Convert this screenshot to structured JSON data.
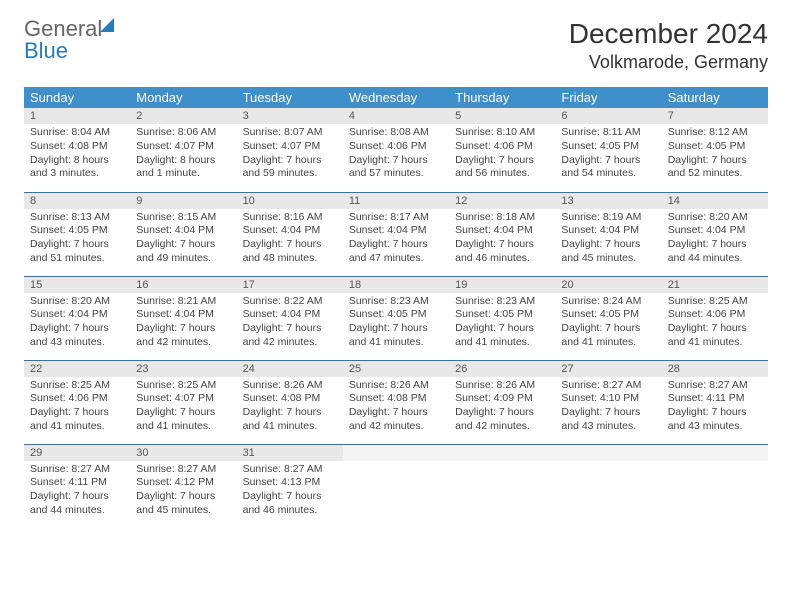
{
  "brand": {
    "word1": "General",
    "word2": "Blue"
  },
  "title": "December 2024",
  "location": "Volkmarode, Germany",
  "colors": {
    "header_bg": "#3f8fca",
    "header_text": "#ffffff",
    "daynum_bg": "#e8e8e8",
    "row_border": "#3f6f9f",
    "brand_blue": "#2a7ab9",
    "body_text": "#444444"
  },
  "dayHeaders": [
    "Sunday",
    "Monday",
    "Tuesday",
    "Wednesday",
    "Thursday",
    "Friday",
    "Saturday"
  ],
  "weeks": [
    [
      {
        "n": "1",
        "sr": "Sunrise: 8:04 AM",
        "ss": "Sunset: 4:08 PM",
        "dl": "Daylight: 8 hours and 3 minutes."
      },
      {
        "n": "2",
        "sr": "Sunrise: 8:06 AM",
        "ss": "Sunset: 4:07 PM",
        "dl": "Daylight: 8 hours and 1 minute."
      },
      {
        "n": "3",
        "sr": "Sunrise: 8:07 AM",
        "ss": "Sunset: 4:07 PM",
        "dl": "Daylight: 7 hours and 59 minutes."
      },
      {
        "n": "4",
        "sr": "Sunrise: 8:08 AM",
        "ss": "Sunset: 4:06 PM",
        "dl": "Daylight: 7 hours and 57 minutes."
      },
      {
        "n": "5",
        "sr": "Sunrise: 8:10 AM",
        "ss": "Sunset: 4:06 PM",
        "dl": "Daylight: 7 hours and 56 minutes."
      },
      {
        "n": "6",
        "sr": "Sunrise: 8:11 AM",
        "ss": "Sunset: 4:05 PM",
        "dl": "Daylight: 7 hours and 54 minutes."
      },
      {
        "n": "7",
        "sr": "Sunrise: 8:12 AM",
        "ss": "Sunset: 4:05 PM",
        "dl": "Daylight: 7 hours and 52 minutes."
      }
    ],
    [
      {
        "n": "8",
        "sr": "Sunrise: 8:13 AM",
        "ss": "Sunset: 4:05 PM",
        "dl": "Daylight: 7 hours and 51 minutes."
      },
      {
        "n": "9",
        "sr": "Sunrise: 8:15 AM",
        "ss": "Sunset: 4:04 PM",
        "dl": "Daylight: 7 hours and 49 minutes."
      },
      {
        "n": "10",
        "sr": "Sunrise: 8:16 AM",
        "ss": "Sunset: 4:04 PM",
        "dl": "Daylight: 7 hours and 48 minutes."
      },
      {
        "n": "11",
        "sr": "Sunrise: 8:17 AM",
        "ss": "Sunset: 4:04 PM",
        "dl": "Daylight: 7 hours and 47 minutes."
      },
      {
        "n": "12",
        "sr": "Sunrise: 8:18 AM",
        "ss": "Sunset: 4:04 PM",
        "dl": "Daylight: 7 hours and 46 minutes."
      },
      {
        "n": "13",
        "sr": "Sunrise: 8:19 AM",
        "ss": "Sunset: 4:04 PM",
        "dl": "Daylight: 7 hours and 45 minutes."
      },
      {
        "n": "14",
        "sr": "Sunrise: 8:20 AM",
        "ss": "Sunset: 4:04 PM",
        "dl": "Daylight: 7 hours and 44 minutes."
      }
    ],
    [
      {
        "n": "15",
        "sr": "Sunrise: 8:20 AM",
        "ss": "Sunset: 4:04 PM",
        "dl": "Daylight: 7 hours and 43 minutes."
      },
      {
        "n": "16",
        "sr": "Sunrise: 8:21 AM",
        "ss": "Sunset: 4:04 PM",
        "dl": "Daylight: 7 hours and 42 minutes."
      },
      {
        "n": "17",
        "sr": "Sunrise: 8:22 AM",
        "ss": "Sunset: 4:04 PM",
        "dl": "Daylight: 7 hours and 42 minutes."
      },
      {
        "n": "18",
        "sr": "Sunrise: 8:23 AM",
        "ss": "Sunset: 4:05 PM",
        "dl": "Daylight: 7 hours and 41 minutes."
      },
      {
        "n": "19",
        "sr": "Sunrise: 8:23 AM",
        "ss": "Sunset: 4:05 PM",
        "dl": "Daylight: 7 hours and 41 minutes."
      },
      {
        "n": "20",
        "sr": "Sunrise: 8:24 AM",
        "ss": "Sunset: 4:05 PM",
        "dl": "Daylight: 7 hours and 41 minutes."
      },
      {
        "n": "21",
        "sr": "Sunrise: 8:25 AM",
        "ss": "Sunset: 4:06 PM",
        "dl": "Daylight: 7 hours and 41 minutes."
      }
    ],
    [
      {
        "n": "22",
        "sr": "Sunrise: 8:25 AM",
        "ss": "Sunset: 4:06 PM",
        "dl": "Daylight: 7 hours and 41 minutes."
      },
      {
        "n": "23",
        "sr": "Sunrise: 8:25 AM",
        "ss": "Sunset: 4:07 PM",
        "dl": "Daylight: 7 hours and 41 minutes."
      },
      {
        "n": "24",
        "sr": "Sunrise: 8:26 AM",
        "ss": "Sunset: 4:08 PM",
        "dl": "Daylight: 7 hours and 41 minutes."
      },
      {
        "n": "25",
        "sr": "Sunrise: 8:26 AM",
        "ss": "Sunset: 4:08 PM",
        "dl": "Daylight: 7 hours and 42 minutes."
      },
      {
        "n": "26",
        "sr": "Sunrise: 8:26 AM",
        "ss": "Sunset: 4:09 PM",
        "dl": "Daylight: 7 hours and 42 minutes."
      },
      {
        "n": "27",
        "sr": "Sunrise: 8:27 AM",
        "ss": "Sunset: 4:10 PM",
        "dl": "Daylight: 7 hours and 43 minutes."
      },
      {
        "n": "28",
        "sr": "Sunrise: 8:27 AM",
        "ss": "Sunset: 4:11 PM",
        "dl": "Daylight: 7 hours and 43 minutes."
      }
    ],
    [
      {
        "n": "29",
        "sr": "Sunrise: 8:27 AM",
        "ss": "Sunset: 4:11 PM",
        "dl": "Daylight: 7 hours and 44 minutes."
      },
      {
        "n": "30",
        "sr": "Sunrise: 8:27 AM",
        "ss": "Sunset: 4:12 PM",
        "dl": "Daylight: 7 hours and 45 minutes."
      },
      {
        "n": "31",
        "sr": "Sunrise: 8:27 AM",
        "ss": "Sunset: 4:13 PM",
        "dl": "Daylight: 7 hours and 46 minutes."
      },
      {
        "empty": true
      },
      {
        "empty": true
      },
      {
        "empty": true
      },
      {
        "empty": true
      }
    ]
  ]
}
